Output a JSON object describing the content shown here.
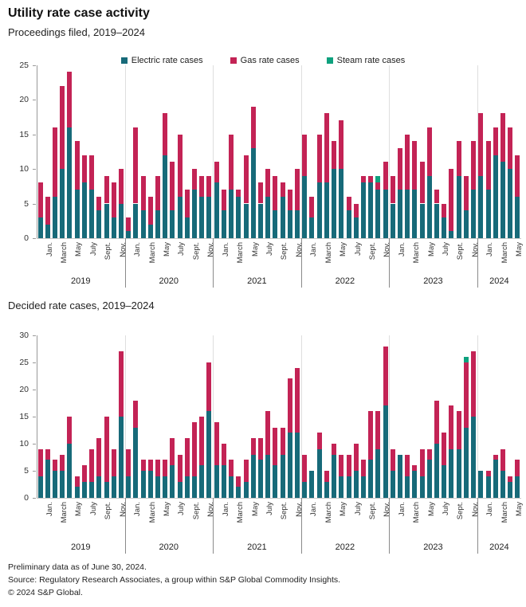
{
  "header": {
    "title": "Utility rate case activity",
    "subtitle": "Proceedings filed, 2019–2024"
  },
  "legend": {
    "items": [
      {
        "label": "Electric rate cases",
        "color": "#176A79"
      },
      {
        "label": "Gas rate cases",
        "color": "#C32355"
      },
      {
        "label": "Steam rate cases",
        "color": "#0EA17E"
      }
    ]
  },
  "footer": {
    "line1": "Preliminary data as of June 30, 2024.",
    "line2": "Source: Regulatory Research Associates, a group within S&P Global Commodity Insights.",
    "line3": "© 2024 S&P Global."
  },
  "chart_data": [
    {
      "type": "bar",
      "stacked": true,
      "title": "Proceedings filed, 2019–2024",
      "ylim": [
        0,
        25
      ],
      "yticks": [
        0,
        5,
        10,
        15,
        20,
        25
      ],
      "grid": false,
      "legend_position": "top",
      "month_tick_labels": [
        "Jan.",
        "March",
        "May",
        "July",
        "Sept.",
        "Nov."
      ],
      "years": [
        {
          "label": "2019",
          "months": 12
        },
        {
          "label": "2020",
          "months": 12
        },
        {
          "label": "2021",
          "months": 12
        },
        {
          "label": "2022",
          "months": 12
        },
        {
          "label": "2023",
          "months": 12
        },
        {
          "label": "2024",
          "months": 6
        }
      ],
      "series": [
        {
          "name": "Electric rate cases",
          "color": "#176A79",
          "values": [
            3,
            2,
            6,
            10,
            16,
            7,
            8,
            7,
            4,
            5,
            3,
            5,
            1,
            5,
            4,
            2,
            4,
            12,
            4,
            6,
            3,
            7,
            6,
            6,
            8,
            4,
            7,
            6,
            5,
            13,
            5,
            6,
            4,
            6,
            4,
            4,
            9,
            3,
            8,
            8,
            10,
            10,
            4,
            3,
            8,
            8,
            7,
            7,
            5,
            7,
            7,
            7,
            5,
            9,
            5,
            3,
            1,
            9,
            4,
            7,
            9,
            7,
            12,
            11,
            10,
            6
          ]
        },
        {
          "name": "Gas rate cases",
          "color": "#C32355",
          "values": [
            5,
            4,
            10,
            12,
            8,
            7,
            4,
            5,
            2,
            4,
            5,
            5,
            2,
            11,
            5,
            4,
            5,
            6,
            7,
            9,
            4,
            3,
            3,
            3,
            3,
            3,
            8,
            1,
            7,
            6,
            3,
            4,
            5,
            2,
            3,
            6,
            6,
            3,
            7,
            10,
            4,
            7,
            2,
            2,
            1,
            1,
            1,
            4,
            4,
            6,
            8,
            7,
            6,
            7,
            2,
            2,
            9,
            5,
            5,
            7,
            9,
            7,
            4,
            7,
            6,
            6
          ]
        },
        {
          "name": "Steam rate cases",
          "color": "#0EA17E",
          "values": [
            0,
            0,
            0,
            0,
            0,
            0,
            0,
            0,
            0,
            0,
            0,
            0,
            0,
            0,
            0,
            0,
            0,
            0,
            0,
            0,
            0,
            0,
            0,
            0,
            0,
            0,
            0,
            0,
            0,
            0,
            0,
            0,
            0,
            0,
            0,
            0,
            0,
            0,
            0,
            0,
            0,
            0,
            0,
            0,
            0,
            0,
            1,
            0,
            0,
            0,
            0,
            0,
            0,
            0,
            0,
            0,
            0,
            0,
            0,
            0,
            0,
            0,
            0,
            0,
            0,
            0
          ]
        }
      ]
    },
    {
      "type": "bar",
      "stacked": true,
      "title": "Decided rate cases, 2019–2024",
      "ylim": [
        0,
        30
      ],
      "yticks": [
        0,
        5,
        10,
        15,
        20,
        25,
        30
      ],
      "grid": false,
      "month_tick_labels": [
        "Jan.",
        "March",
        "May",
        "July",
        "Sept.",
        "Nov."
      ],
      "years": [
        {
          "label": "2019",
          "months": 12
        },
        {
          "label": "2020",
          "months": 12
        },
        {
          "label": "2021",
          "months": 12
        },
        {
          "label": "2022",
          "months": 12
        },
        {
          "label": "2023",
          "months": 12
        },
        {
          "label": "2024",
          "months": 6
        }
      ],
      "series": [
        {
          "name": "Electric rate cases",
          "color": "#176A79",
          "values": [
            4,
            7,
            5,
            5,
            10,
            2,
            3,
            3,
            4,
            3,
            4,
            15,
            4,
            13,
            5,
            5,
            4,
            4,
            6,
            3,
            4,
            4,
            6,
            16,
            6,
            6,
            4,
            2,
            3,
            8,
            7,
            8,
            6,
            8,
            12,
            12,
            3,
            5,
            9,
            3,
            8,
            4,
            4,
            5,
            4,
            7,
            9,
            17,
            5,
            8,
            4,
            5,
            4,
            7,
            10,
            6,
            9,
            9,
            13,
            15,
            5,
            4,
            7,
            5,
            3,
            4
          ]
        },
        {
          "name": "Gas rate cases",
          "color": "#C32355",
          "values": [
            5,
            2,
            2,
            3,
            5,
            2,
            3,
            6,
            7,
            12,
            5,
            12,
            5,
            5,
            2,
            2,
            3,
            3,
            5,
            5,
            7,
            10,
            9,
            9,
            8,
            4,
            3,
            2,
            4,
            3,
            4,
            8,
            7,
            5,
            10,
            12,
            5,
            0,
            3,
            2,
            2,
            4,
            4,
            5,
            3,
            9,
            7,
            11,
            4,
            0,
            4,
            1,
            5,
            2,
            8,
            6,
            8,
            7,
            12,
            12,
            0,
            1,
            1,
            4,
            1,
            3
          ]
        },
        {
          "name": "Steam rate cases",
          "color": "#0EA17E",
          "values": [
            0,
            0,
            0,
            0,
            0,
            0,
            0,
            0,
            0,
            0,
            0,
            0,
            0,
            0,
            0,
            0,
            0,
            0,
            0,
            0,
            0,
            0,
            0,
            0,
            0,
            0,
            0,
            0,
            0,
            0,
            0,
            0,
            0,
            0,
            0,
            0,
            0,
            0,
            0,
            0,
            0,
            0,
            0,
            0,
            0,
            0,
            0,
            0,
            0,
            0,
            0,
            0,
            0,
            0,
            0,
            0,
            0,
            0,
            1,
            0,
            0,
            0,
            0,
            0,
            0,
            0
          ]
        }
      ]
    }
  ]
}
